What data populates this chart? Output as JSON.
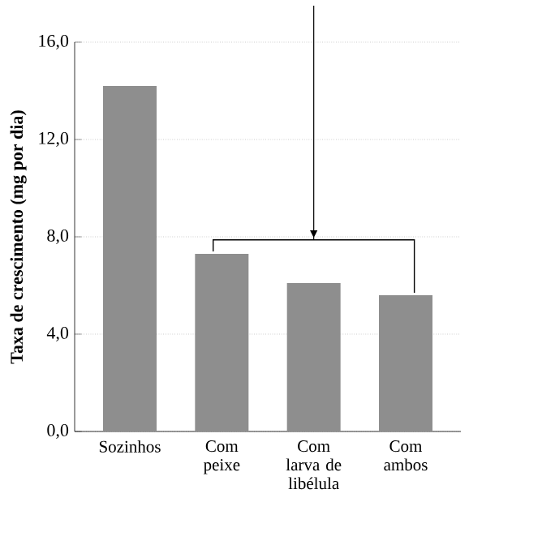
{
  "chart_data": {
    "type": "bar",
    "ylabel": "Taxa de crescimento (mg por dia)",
    "categories": [
      "Sozinhos",
      "Com peixe",
      "Com larva de libélula",
      "Com ambos"
    ],
    "values": [
      14.2,
      7.3,
      6.1,
      5.6
    ],
    "color": "#8e8e8e",
    "ylim": [
      0,
      16
    ],
    "yticks": [
      {
        "value": 0,
        "label": "0,0"
      },
      {
        "value": 4,
        "label": "4,0"
      },
      {
        "value": 8,
        "label": "8,0"
      },
      {
        "value": 12,
        "label": "12,0"
      },
      {
        "value": 16,
        "label": "16,0"
      }
    ],
    "grid": "y"
  }
}
